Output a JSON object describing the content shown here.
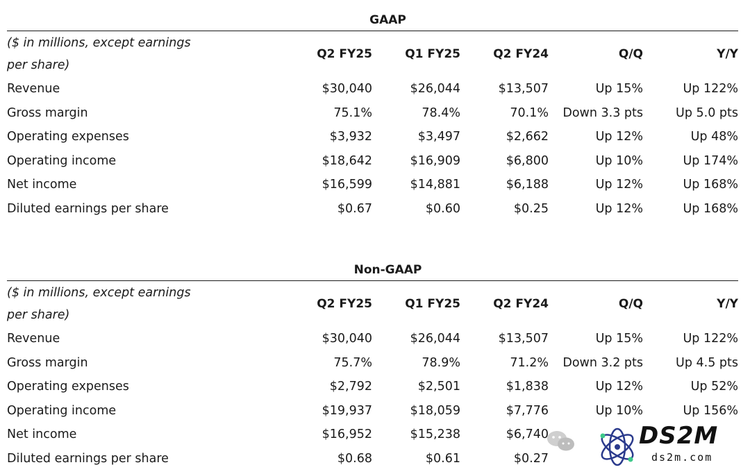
{
  "gaap": {
    "title": "GAAP",
    "note": "($ in millions, except earnings per share)",
    "columns": [
      "Q2 FY25",
      "Q1 FY25",
      "Q2 FY24",
      "Q/Q",
      "Y/Y"
    ],
    "rows": [
      {
        "label": "Revenue",
        "values": [
          "$30,040",
          "$26,044",
          "$13,507",
          "Up 15%",
          "Up 122%"
        ]
      },
      {
        "label": "Gross margin",
        "values": [
          "75.1%",
          "78.4%",
          "70.1%",
          "Down 3.3 pts",
          "Up 5.0 pts"
        ]
      },
      {
        "label": "Operating expenses",
        "values": [
          "$3,932",
          "$3,497",
          "$2,662",
          "Up 12%",
          "Up 48%"
        ]
      },
      {
        "label": "Operating income",
        "values": [
          "$18,642",
          "$16,909",
          "$6,800",
          "Up 10%",
          "Up 174%"
        ]
      },
      {
        "label": "Net income",
        "values": [
          "$16,599",
          "$14,881",
          "$6,188",
          "Up 12%",
          "Up 168%"
        ]
      },
      {
        "label": "Diluted earnings per share",
        "values": [
          "$0.67",
          "$0.60",
          "$0.25",
          "Up 12%",
          "Up 168%"
        ]
      }
    ]
  },
  "nongaap": {
    "title": "Non-GAAP",
    "note": "($ in millions, except earnings per share)",
    "columns": [
      "Q2 FY25",
      "Q1 FY25",
      "Q2 FY24",
      "Q/Q",
      "Y/Y"
    ],
    "rows": [
      {
        "label": "Revenue",
        "values": [
          "$30,040",
          "$26,044",
          "$13,507",
          "Up 15%",
          "Up 122%"
        ]
      },
      {
        "label": "Gross margin",
        "values": [
          "75.7%",
          "78.9%",
          "71.2%",
          "Down 3.2 pts",
          "Up 4.5 pts"
        ]
      },
      {
        "label": "Operating expenses",
        "values": [
          "$2,792",
          "$2,501",
          "$1,838",
          "Up 12%",
          "Up 52%"
        ]
      },
      {
        "label": "Operating income",
        "values": [
          "$19,937",
          "$18,059",
          "$7,776",
          "Up 10%",
          "Up 156%"
        ]
      },
      {
        "label": "Net income",
        "values": [
          "$16,952",
          "$15,238",
          "$6,740",
          "",
          ""
        ]
      },
      {
        "label": "Diluted earnings per share",
        "values": [
          "$0.68",
          "$0.61",
          "$0.27",
          "",
          ""
        ]
      }
    ]
  },
  "watermark": {
    "brand": "DS2M",
    "url": "ds2m.com",
    "icons": [
      "wechat-icon",
      "ds2m-logo-icon"
    ]
  }
}
